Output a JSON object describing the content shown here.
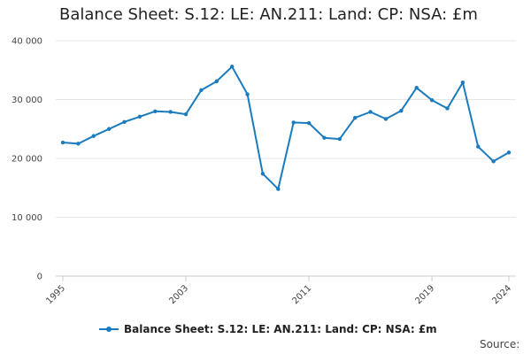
{
  "title": "Balance Sheet: S.12: LE: AN.211: Land: CP: NSA: £m",
  "source_label": "Source:",
  "colors": {
    "series": "#1a7bbf",
    "grid": "#e6e6e6",
    "axis": "#cccccc"
  },
  "chart_data": {
    "type": "line",
    "x": [
      1995,
      1996,
      1997,
      1998,
      1999,
      2000,
      2001,
      2002,
      2003,
      2004,
      2005,
      2006,
      2007,
      2008,
      2009,
      2010,
      2011,
      2012,
      2013,
      2014,
      2015,
      2016,
      2017,
      2018,
      2019,
      2020,
      2021,
      2022,
      2023,
      2024
    ],
    "series": [
      {
        "name": "Balance Sheet: S.12: LE: AN.211: Land: CP: NSA: £m",
        "values": [
          22700,
          22500,
          23800,
          25000,
          26200,
          27100,
          28000,
          27900,
          27500,
          31600,
          33100,
          35600,
          30900,
          17400,
          14800,
          26100,
          26000,
          23500,
          23300,
          26900,
          27900,
          26700,
          28100,
          32000,
          29900,
          28500,
          32900,
          22000,
          19500,
          21000
        ]
      }
    ],
    "x_ticks": [
      "1995",
      "2003",
      "2011",
      "2019",
      "2024"
    ],
    "y_ticks": [
      "0",
      "10 000",
      "20 000",
      "30 000",
      "40 000"
    ],
    "y_tick_values": [
      0,
      10000,
      20000,
      30000,
      40000
    ],
    "x_tick_values": [
      1995,
      2003,
      2011,
      2019,
      2024
    ],
    "xlim": [
      1995,
      2024
    ],
    "ylim": [
      0,
      40000
    ],
    "grid": "horizontal",
    "legend": "bottom"
  }
}
